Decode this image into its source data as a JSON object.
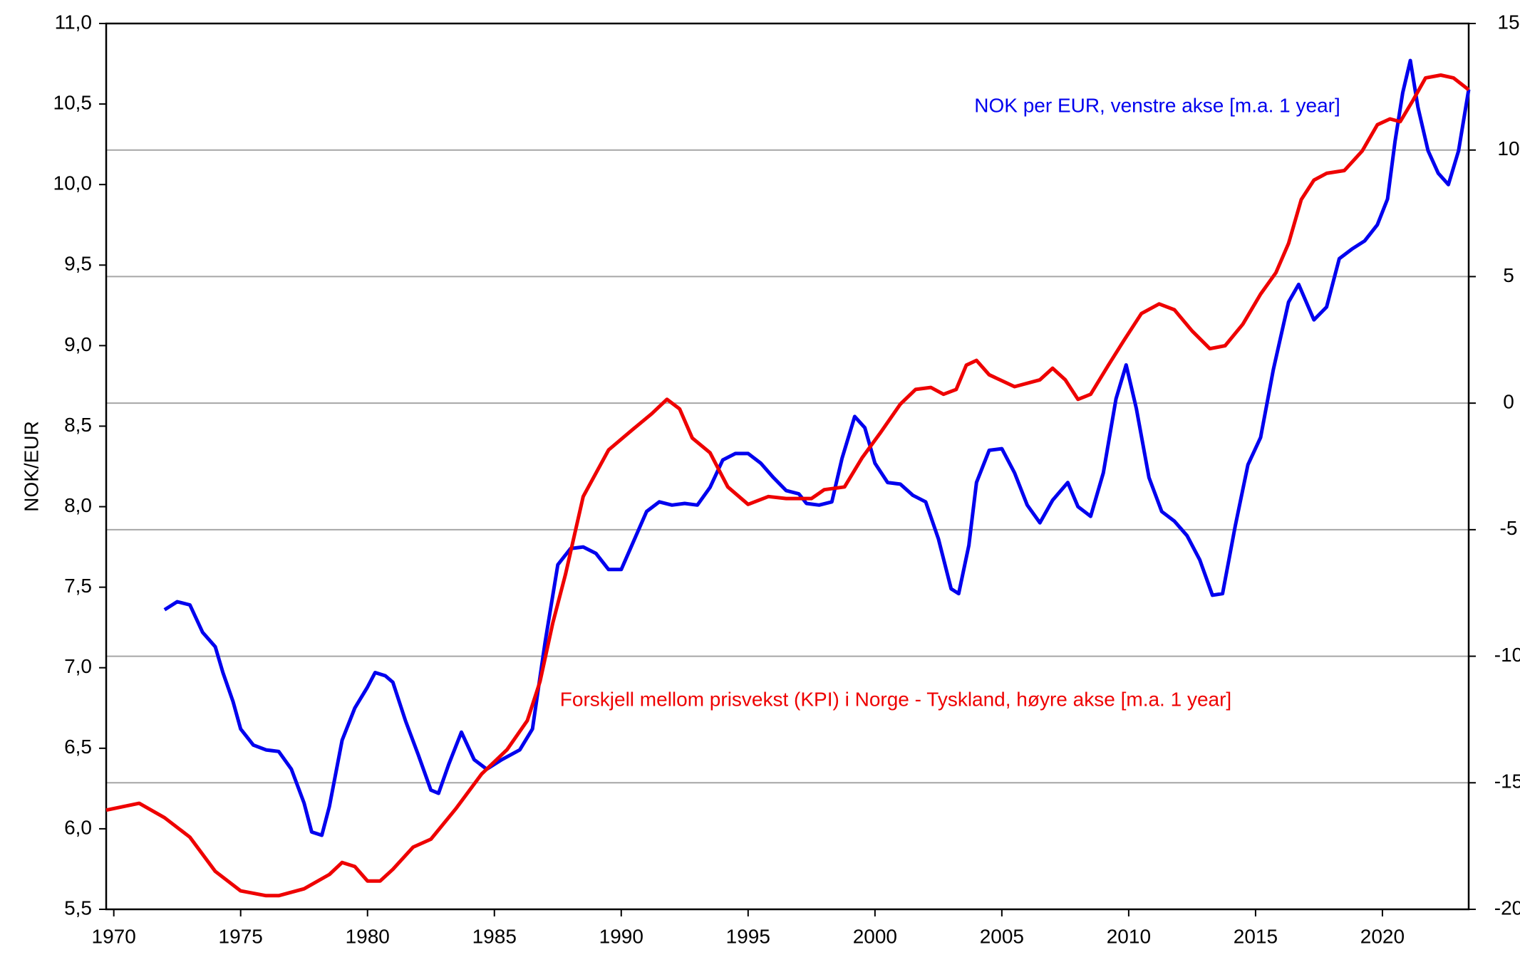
{
  "chart_data": {
    "type": "line",
    "ylabel": "NOK/EUR",
    "xlim": [
      1969.7,
      2023.4
    ],
    "xticks": [
      1970,
      1975,
      1980,
      1985,
      1990,
      1995,
      2000,
      2005,
      2010,
      2015,
      2020
    ],
    "ylim": [
      5.5,
      11.0
    ],
    "yticks": [
      {
        "value": 5.5,
        "label": "5,5"
      },
      {
        "value": 6.0,
        "label": "6,0"
      },
      {
        "value": 6.5,
        "label": "6,5"
      },
      {
        "value": 7.0,
        "label": "7,0"
      },
      {
        "value": 7.5,
        "label": "7,5"
      },
      {
        "value": 8.0,
        "label": "8,0"
      },
      {
        "value": 8.5,
        "label": "8,5"
      },
      {
        "value": 9.0,
        "label": "9,0"
      },
      {
        "value": 9.5,
        "label": "9,5"
      },
      {
        "value": 10.0,
        "label": "10,0"
      },
      {
        "value": 10.5,
        "label": "10,5"
      },
      {
        "value": 11.0,
        "label": "11,0"
      }
    ],
    "y2lim": [
      -20,
      15
    ],
    "y2ticks": [
      -20,
      -15,
      -10,
      -5,
      0,
      5,
      10,
      15
    ],
    "grid": true,
    "series": [
      {
        "name": "NOK per EUR, venstre akse [m.a. 1 year]",
        "color": "#0000ee",
        "axis": "y",
        "x": [
          1972.0,
          1972.5,
          1973.0,
          1973.5,
          1974.0,
          1974.3,
          1974.7,
          1975.0,
          1975.5,
          1976.0,
          1976.5,
          1977.0,
          1977.5,
          1977.8,
          1978.2,
          1978.5,
          1979.0,
          1979.5,
          1980.0,
          1980.3,
          1980.7,
          1981.0,
          1981.5,
          1982.0,
          1982.5,
          1982.8,
          1983.2,
          1983.7,
          1984.2,
          1984.7,
          1985.3,
          1986.0,
          1986.5,
          1987.0,
          1987.5,
          1988.0,
          1988.5,
          1989.0,
          1989.5,
          1990.0,
          1990.5,
          1991.0,
          1991.5,
          1992.0,
          1992.5,
          1993.0,
          1993.5,
          1994.0,
          1994.5,
          1995.0,
          1995.5,
          1996.0,
          1996.5,
          1997.0,
          1997.3,
          1997.8,
          1998.3,
          1998.7,
          1999.2,
          1999.6,
          2000.0,
          2000.5,
          2001.0,
          2001.5,
          2002.0,
          2002.5,
          2003.0,
          2003.3,
          2003.7,
          2004.0,
          2004.5,
          2005.0,
          2005.5,
          2006.0,
          2006.5,
          2007.0,
          2007.6,
          2008.0,
          2008.5,
          2009.0,
          2009.5,
          2009.9,
          2010.3,
          2010.8,
          2011.3,
          2011.8,
          2012.3,
          2012.8,
          2013.3,
          2013.7,
          2014.2,
          2014.7,
          2015.2,
          2015.7,
          2016.3,
          2016.7,
          2017.3,
          2017.8,
          2018.3,
          2018.8,
          2019.3,
          2019.8,
          2020.2,
          2020.5,
          2020.8,
          2021.1,
          2021.4,
          2021.8,
          2022.2,
          2022.6,
          2023.0,
          2023.4
        ],
        "values": [
          7.36,
          7.41,
          7.39,
          7.22,
          7.13,
          6.97,
          6.79,
          6.62,
          6.52,
          6.49,
          6.48,
          6.37,
          6.16,
          5.98,
          5.96,
          6.14,
          6.55,
          6.75,
          6.88,
          6.97,
          6.95,
          6.91,
          6.67,
          6.46,
          6.24,
          6.22,
          6.4,
          6.6,
          6.43,
          6.37,
          6.43,
          6.49,
          6.62,
          7.16,
          7.64,
          7.74,
          7.75,
          7.71,
          7.61,
          7.61,
          7.79,
          7.97,
          8.03,
          8.01,
          8.02,
          8.01,
          8.12,
          8.29,
          8.33,
          8.33,
          8.27,
          8.18,
          8.1,
          8.08,
          8.02,
          8.01,
          8.03,
          8.3,
          8.56,
          8.49,
          8.27,
          8.15,
          8.14,
          8.07,
          8.03,
          7.8,
          7.49,
          7.46,
          7.76,
          8.15,
          8.35,
          8.36,
          8.21,
          8.01,
          7.9,
          8.04,
          8.15,
          8.0,
          7.94,
          8.21,
          8.67,
          8.88,
          8.61,
          8.18,
          7.97,
          7.91,
          7.82,
          7.67,
          7.45,
          7.46,
          7.88,
          8.26,
          8.43,
          8.85,
          9.27,
          9.38,
          9.16,
          9.24,
          9.54,
          9.6,
          9.65,
          9.75,
          9.91,
          10.27,
          10.57,
          10.77,
          10.48,
          10.21,
          10.07,
          10.0,
          10.21,
          10.59
        ]
      },
      {
        "name": "Forskjell mellom prisvekst (KPI) i Norge - Tyskland, høyre akse [m.a. 1 year]",
        "color": "#ee0000",
        "axis": "y2",
        "x": [
          1969.7,
          1971.0,
          1972.0,
          1973.0,
          1974.0,
          1975.0,
          1976.0,
          1976.5,
          1977.5,
          1978.5,
          1979.0,
          1979.5,
          1980.0,
          1980.5,
          1981.0,
          1981.8,
          1982.5,
          1983.5,
          1984.5,
          1985.5,
          1986.3,
          1986.8,
          1987.3,
          1987.8,
          1988.5,
          1989.5,
          1990.5,
          1991.2,
          1991.8,
          1992.3,
          1992.8,
          1993.5,
          1994.2,
          1995.0,
          1995.8,
          1996.5,
          1997.5,
          1998.0,
          1998.8,
          1999.5,
          2000.2,
          2001.0,
          2001.6,
          2002.2,
          2002.7,
          2003.2,
          2003.6,
          2004.0,
          2004.5,
          2005.5,
          2006.5,
          2007.0,
          2007.5,
          2008.0,
          2008.5,
          2009.2,
          2009.8,
          2010.5,
          2011.2,
          2011.8,
          2012.5,
          2013.2,
          2013.8,
          2014.5,
          2015.2,
          2015.8,
          2016.3,
          2016.8,
          2017.3,
          2017.8,
          2018.5,
          2019.2,
          2019.8,
          2020.3,
          2020.7,
          2021.2,
          2021.7,
          2022.3,
          2022.8,
          2023.4
        ],
        "values": [
          -16.08,
          -15.81,
          -16.38,
          -17.15,
          -18.5,
          -19.27,
          -19.46,
          -19.46,
          -19.19,
          -18.62,
          -18.15,
          -18.31,
          -18.88,
          -18.88,
          -18.42,
          -17.54,
          -17.23,
          -16.0,
          -14.65,
          -13.69,
          -12.54,
          -11.0,
          -8.69,
          -6.77,
          -3.69,
          -1.85,
          -1.0,
          -0.42,
          0.15,
          -0.23,
          -1.38,
          -1.96,
          -3.31,
          -4.0,
          -3.69,
          -3.77,
          -3.77,
          -3.42,
          -3.31,
          -2.15,
          -1.19,
          -0.04,
          0.54,
          0.62,
          0.35,
          0.54,
          1.5,
          1.69,
          1.12,
          0.65,
          0.92,
          1.38,
          0.92,
          0.15,
          0.35,
          1.5,
          2.46,
          3.54,
          3.92,
          3.69,
          2.85,
          2.15,
          2.27,
          3.12,
          4.31,
          5.15,
          6.31,
          8.04,
          8.81,
          9.08,
          9.19,
          9.96,
          11.0,
          11.23,
          11.12,
          11.96,
          12.85,
          12.96,
          12.85,
          12.38
        ]
      }
    ]
  }
}
